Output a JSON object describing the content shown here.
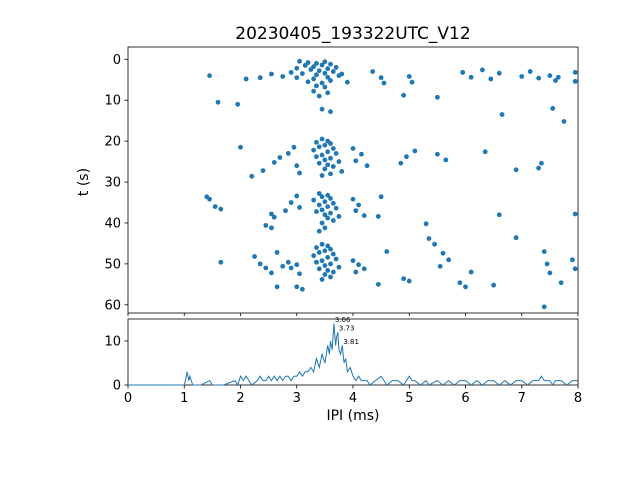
{
  "figure": {
    "title": "20230405_193322UTC_V12",
    "background": "#ffffff",
    "series_color": "#1f77b4",
    "axes_color": "#000000"
  },
  "chart_data": [
    {
      "type": "scatter",
      "title": "20230405_193322UTC_V12",
      "xlabel": "",
      "ylabel": "t (s)",
      "xlim": [
        0,
        8
      ],
      "ylim": [
        62,
        -3
      ],
      "y_inverted": true,
      "grid": false,
      "yticks": [
        0,
        10,
        20,
        30,
        40,
        50,
        60
      ],
      "xticks": [
        0,
        1,
        2,
        3,
        4,
        5,
        6,
        7,
        8
      ],
      "points": [
        [
          3.05,
          0.5
        ],
        [
          3.2,
          0.8
        ],
        [
          3.35,
          1.0
        ],
        [
          3.5,
          0.6
        ],
        [
          3.15,
          1.5
        ],
        [
          3.3,
          1.8
        ],
        [
          3.45,
          1.4
        ],
        [
          3.6,
          1.2
        ],
        [
          3.0,
          2.2
        ],
        [
          3.25,
          2.5
        ],
        [
          3.4,
          2.8
        ],
        [
          3.55,
          2.3
        ],
        [
          3.7,
          2.0
        ],
        [
          2.9,
          3.2
        ],
        [
          3.1,
          3.5
        ],
        [
          3.35,
          3.8
        ],
        [
          3.5,
          3.4
        ],
        [
          3.65,
          3.0
        ],
        [
          3.8,
          3.6
        ],
        [
          2.75,
          4.2
        ],
        [
          3.0,
          4.5
        ],
        [
          3.3,
          4.8
        ],
        [
          3.55,
          4.4
        ],
        [
          3.75,
          4.0
        ],
        [
          3.2,
          5.5
        ],
        [
          3.45,
          5.8
        ],
        [
          3.6,
          5.2
        ],
        [
          3.9,
          5.6
        ],
        [
          3.35,
          6.5
        ],
        [
          3.5,
          6.8
        ],
        [
          3.3,
          7.8
        ],
        [
          3.55,
          8.2
        ],
        [
          3.4,
          9.0
        ],
        [
          1.45,
          4.0
        ],
        [
          2.1,
          4.8
        ],
        [
          2.35,
          4.5
        ],
        [
          2.55,
          3.6
        ],
        [
          4.35,
          3.0
        ],
        [
          4.5,
          4.5
        ],
        [
          4.55,
          5.8
        ],
        [
          5.0,
          4.2
        ],
        [
          5.05,
          5.6
        ],
        [
          4.9,
          8.8
        ],
        [
          5.5,
          9.3
        ],
        [
          5.95,
          3.2
        ],
        [
          6.1,
          4.4
        ],
        [
          6.3,
          2.6
        ],
        [
          6.45,
          4.8
        ],
        [
          6.6,
          3.4
        ],
        [
          7.0,
          4.2
        ],
        [
          7.15,
          3.0
        ],
        [
          7.3,
          4.6
        ],
        [
          7.5,
          4.0
        ],
        [
          7.65,
          4.4
        ],
        [
          7.95,
          3.2
        ],
        [
          7.95,
          5.4
        ],
        [
          7.6,
          5.2
        ],
        [
          1.6,
          10.5
        ],
        [
          1.95,
          11.0
        ],
        [
          3.45,
          12.2
        ],
        [
          3.6,
          12.8
        ],
        [
          6.65,
          13.5
        ],
        [
          7.55,
          12.0
        ],
        [
          7.75,
          15.2
        ],
        [
          3.45,
          19.5
        ],
        [
          3.55,
          20.0
        ],
        [
          3.35,
          20.3
        ],
        [
          3.6,
          20.6
        ],
        [
          3.5,
          21.0
        ],
        [
          3.4,
          21.4
        ],
        [
          3.65,
          21.8
        ],
        [
          3.3,
          22.2
        ],
        [
          3.55,
          22.6
        ],
        [
          3.7,
          23.0
        ],
        [
          3.45,
          23.4
        ],
        [
          3.35,
          23.8
        ],
        [
          3.6,
          24.2
        ],
        [
          3.5,
          24.6
        ],
        [
          3.75,
          25.0
        ],
        [
          3.4,
          25.4
        ],
        [
          3.55,
          25.8
        ],
        [
          3.65,
          26.2
        ],
        [
          3.5,
          26.8
        ],
        [
          3.8,
          27.4
        ],
        [
          3.6,
          28.0
        ],
        [
          3.45,
          28.4
        ],
        [
          2.95,
          21.5
        ],
        [
          2.85,
          23.0
        ],
        [
          2.7,
          24.0
        ],
        [
          2.6,
          25.2
        ],
        [
          3.0,
          26.0
        ],
        [
          3.05,
          27.8
        ],
        [
          4.0,
          21.8
        ],
        [
          4.15,
          23.2
        ],
        [
          4.05,
          24.8
        ],
        [
          4.25,
          26.0
        ],
        [
          2.0,
          21.5
        ],
        [
          2.4,
          27.2
        ],
        [
          2.2,
          28.6
        ],
        [
          4.95,
          23.8
        ],
        [
          5.1,
          22.4
        ],
        [
          4.85,
          25.4
        ],
        [
          5.5,
          23.2
        ],
        [
          5.65,
          24.6
        ],
        [
          6.35,
          22.6
        ],
        [
          6.9,
          27.0
        ],
        [
          7.35,
          25.4
        ],
        [
          7.3,
          26.6
        ],
        [
          3.4,
          32.8
        ],
        [
          3.55,
          33.2
        ],
        [
          3.45,
          33.6
        ],
        [
          3.6,
          34.0
        ],
        [
          3.3,
          34.4
        ],
        [
          3.5,
          34.8
        ],
        [
          3.65,
          35.2
        ],
        [
          3.4,
          35.6
        ],
        [
          3.55,
          36.0
        ],
        [
          3.7,
          36.4
        ],
        [
          3.45,
          36.8
        ],
        [
          3.35,
          37.2
        ],
        [
          3.6,
          37.6
        ],
        [
          3.5,
          38.0
        ],
        [
          3.75,
          38.4
        ],
        [
          3.55,
          38.8
        ],
        [
          3.65,
          39.4
        ],
        [
          3.45,
          40.0
        ],
        [
          3.5,
          41.2
        ],
        [
          3.4,
          42.0
        ],
        [
          3.0,
          33.4
        ],
        [
          2.9,
          35.0
        ],
        [
          3.05,
          36.2
        ],
        [
          2.8,
          37.0
        ],
        [
          4.0,
          34.2
        ],
        [
          4.1,
          35.6
        ],
        [
          4.05,
          37.0
        ],
        [
          4.2,
          38.2
        ],
        [
          2.55,
          37.8
        ],
        [
          2.6,
          38.6
        ],
        [
          4.45,
          38.4
        ],
        [
          4.5,
          33.6
        ],
        [
          1.4,
          33.6
        ],
        [
          1.45,
          34.2
        ],
        [
          1.55,
          36.0
        ],
        [
          1.65,
          36.6
        ],
        [
          6.6,
          38.0
        ],
        [
          7.95,
          37.8
        ],
        [
          5.3,
          40.2
        ],
        [
          2.45,
          40.6
        ],
        [
          2.55,
          41.2
        ],
        [
          5.35,
          43.8
        ],
        [
          5.45,
          45.2
        ],
        [
          6.9,
          43.6
        ],
        [
          3.45,
          45.2
        ],
        [
          3.55,
          45.6
        ],
        [
          3.35,
          46.0
        ],
        [
          3.6,
          46.4
        ],
        [
          3.5,
          46.8
        ],
        [
          3.4,
          47.2
        ],
        [
          3.65,
          47.6
        ],
        [
          3.3,
          48.0
        ],
        [
          3.55,
          48.4
        ],
        [
          3.7,
          48.8
        ],
        [
          3.45,
          49.2
        ],
        [
          3.35,
          49.6
        ],
        [
          3.6,
          50.0
        ],
        [
          3.5,
          50.4
        ],
        [
          3.75,
          50.8
        ],
        [
          3.4,
          51.2
        ],
        [
          3.55,
          51.6
        ],
        [
          3.65,
          52.0
        ],
        [
          3.5,
          52.6
        ],
        [
          3.6,
          53.2
        ],
        [
          3.45,
          53.8
        ],
        [
          3.0,
          50.2
        ],
        [
          2.9,
          51.0
        ],
        [
          2.85,
          49.6
        ],
        [
          2.75,
          50.6
        ],
        [
          3.05,
          52.4
        ],
        [
          4.0,
          49.2
        ],
        [
          4.1,
          50.2
        ],
        [
          4.2,
          51.2
        ],
        [
          4.05,
          52.0
        ],
        [
          2.25,
          48.2
        ],
        [
          2.35,
          50.0
        ],
        [
          2.45,
          51.0
        ],
        [
          2.55,
          52.2
        ],
        [
          1.65,
          49.6
        ],
        [
          2.65,
          47.2
        ],
        [
          4.6,
          47.0
        ],
        [
          5.6,
          47.4
        ],
        [
          5.7,
          49.0
        ],
        [
          5.55,
          50.6
        ],
        [
          4.9,
          53.6
        ],
        [
          5.0,
          54.2
        ],
        [
          4.45,
          55.0
        ],
        [
          3.0,
          55.6
        ],
        [
          3.1,
          56.2
        ],
        [
          2.65,
          55.6
        ],
        [
          5.9,
          54.6
        ],
        [
          6.1,
          52.0
        ],
        [
          6.0,
          55.6
        ],
        [
          7.4,
          47.0
        ],
        [
          7.45,
          50.0
        ],
        [
          7.5,
          52.2
        ],
        [
          7.9,
          49.0
        ],
        [
          7.95,
          51.2
        ],
        [
          7.7,
          54.6
        ],
        [
          6.5,
          55.2
        ],
        [
          7.4,
          60.5
        ]
      ]
    },
    {
      "type": "line",
      "title": "",
      "xlabel": "IPI (ms)",
      "ylabel": "",
      "xlim": [
        0,
        8
      ],
      "ylim": [
        0,
        15
      ],
      "grid": false,
      "yticks": [
        0,
        10
      ],
      "xticks": [
        0,
        1,
        2,
        3,
        4,
        5,
        6,
        7,
        8
      ],
      "points": [
        [
          0,
          0
        ],
        [
          0.5,
          0
        ],
        [
          1.0,
          0
        ],
        [
          1.02,
          1
        ],
        [
          1.05,
          3
        ],
        [
          1.08,
          1
        ],
        [
          1.1,
          2
        ],
        [
          1.15,
          0
        ],
        [
          1.3,
          0
        ],
        [
          1.45,
          1
        ],
        [
          1.5,
          0
        ],
        [
          1.7,
          0
        ],
        [
          1.9,
          1
        ],
        [
          1.95,
          0
        ],
        [
          2.0,
          2
        ],
        [
          2.05,
          1
        ],
        [
          2.1,
          2
        ],
        [
          2.15,
          1
        ],
        [
          2.2,
          0
        ],
        [
          2.3,
          1
        ],
        [
          2.35,
          2
        ],
        [
          2.4,
          1
        ],
        [
          2.45,
          1
        ],
        [
          2.5,
          2
        ],
        [
          2.55,
          1
        ],
        [
          2.6,
          2
        ],
        [
          2.65,
          1
        ],
        [
          2.7,
          2
        ],
        [
          2.75,
          1
        ],
        [
          2.8,
          2
        ],
        [
          2.85,
          2
        ],
        [
          2.9,
          1
        ],
        [
          2.95,
          2
        ],
        [
          3.0,
          2
        ],
        [
          3.05,
          3
        ],
        [
          3.1,
          2
        ],
        [
          3.15,
          3
        ],
        [
          3.2,
          3
        ],
        [
          3.25,
          4
        ],
        [
          3.3,
          3
        ],
        [
          3.35,
          6
        ],
        [
          3.4,
          4
        ],
        [
          3.45,
          7
        ],
        [
          3.5,
          5
        ],
        [
          3.55,
          9
        ],
        [
          3.58,
          7
        ],
        [
          3.6,
          10
        ],
        [
          3.63,
          8
        ],
        [
          3.66,
          14
        ],
        [
          3.69,
          9
        ],
        [
          3.71,
          11
        ],
        [
          3.73,
          12
        ],
        [
          3.75,
          8
        ],
        [
          3.78,
          7
        ],
        [
          3.81,
          9
        ],
        [
          3.84,
          5
        ],
        [
          3.87,
          6
        ],
        [
          3.9,
          3
        ],
        [
          3.95,
          4
        ],
        [
          4.0,
          2
        ],
        [
          4.05,
          1
        ],
        [
          4.1,
          2
        ],
        [
          4.15,
          1
        ],
        [
          4.25,
          1
        ],
        [
          4.3,
          0
        ],
        [
          4.4,
          1
        ],
        [
          4.5,
          2
        ],
        [
          4.55,
          1
        ],
        [
          4.6,
          0
        ],
        [
          4.7,
          1
        ],
        [
          4.8,
          1
        ],
        [
          4.9,
          0
        ],
        [
          5.0,
          2
        ],
        [
          5.05,
          1
        ],
        [
          5.1,
          1
        ],
        [
          5.2,
          0
        ],
        [
          5.3,
          1
        ],
        [
          5.35,
          0
        ],
        [
          5.5,
          1
        ],
        [
          5.6,
          0
        ],
        [
          5.7,
          1
        ],
        [
          5.8,
          0
        ],
        [
          5.9,
          1
        ],
        [
          6.0,
          1
        ],
        [
          6.1,
          0
        ],
        [
          6.2,
          1
        ],
        [
          6.3,
          0
        ],
        [
          6.4,
          1
        ],
        [
          6.5,
          1
        ],
        [
          6.6,
          0
        ],
        [
          6.7,
          1
        ],
        [
          6.8,
          0
        ],
        [
          6.9,
          1
        ],
        [
          7.0,
          1
        ],
        [
          7.1,
          0
        ],
        [
          7.2,
          1
        ],
        [
          7.3,
          1
        ],
        [
          7.35,
          2
        ],
        [
          7.4,
          1
        ],
        [
          7.5,
          1
        ],
        [
          7.55,
          0
        ],
        [
          7.6,
          1
        ],
        [
          7.7,
          1
        ],
        [
          7.8,
          0
        ],
        [
          7.9,
          1
        ],
        [
          8.0,
          1
        ]
      ],
      "annotations": [
        {
          "text": "3.66",
          "x": 3.66,
          "y": 14
        },
        {
          "text": "3.73",
          "x": 3.73,
          "y": 12
        },
        {
          "text": "3.81",
          "x": 3.81,
          "y": 9
        }
      ]
    }
  ]
}
